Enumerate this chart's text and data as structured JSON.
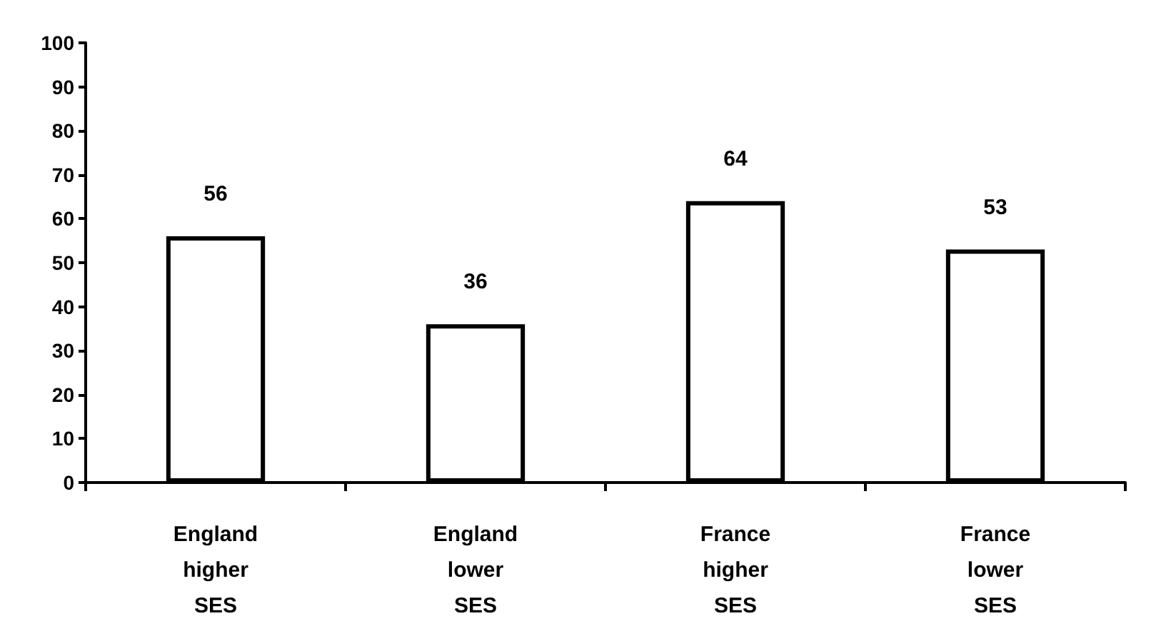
{
  "chart_data": {
    "type": "bar",
    "categories": [
      "England higher SES",
      "England lower SES",
      "France higher SES",
      "France lower SES"
    ],
    "values": [
      56,
      36,
      64,
      53
    ],
    "color": "#ffffff",
    "ylim": [
      0,
      100
    ],
    "yticks": [
      0,
      10,
      20,
      30,
      40,
      50,
      60,
      70,
      80,
      90,
      100
    ],
    "grid": false,
    "data_labels": true
  }
}
